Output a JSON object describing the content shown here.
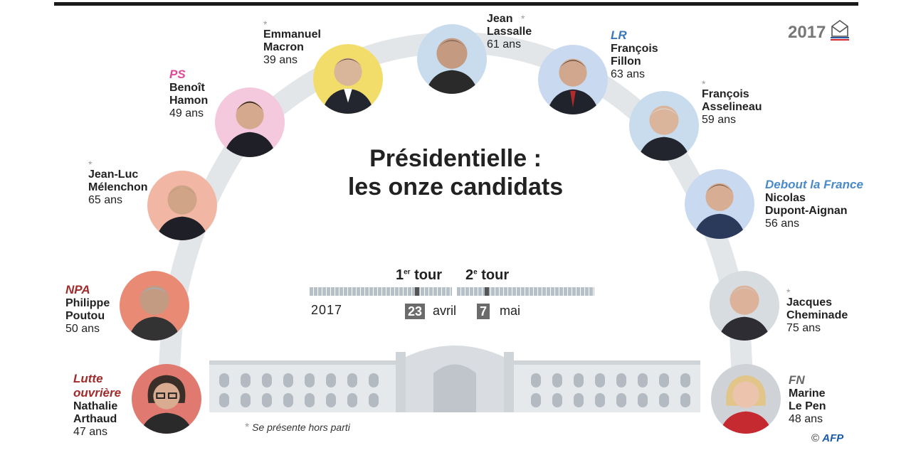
{
  "title_line1": "Présidentielle :",
  "title_line2": "les onze candidats",
  "star_symbol": "*",
  "candidates": [
    {
      "party": "",
      "party_color": "",
      "first": "Emmanuel",
      "last": "Macron",
      "age": "39 ans",
      "star": true,
      "ring": "#f3dd6a"
    },
    {
      "party": "",
      "party_color": "",
      "first": "Jean",
      "last": "Lassalle",
      "age": "61 ans",
      "star": true,
      "ring": "#c8dced"
    },
    {
      "party": "LR",
      "party_color": "#3b78b9",
      "first": "François",
      "last": "Fillon",
      "age": "63 ans",
      "star": false,
      "ring": "#c9d9f0"
    },
    {
      "party": "",
      "party_color": "",
      "first": "François",
      "last": "Asselineau",
      "age": "59 ans",
      "star": true,
      "ring": "#c8dced"
    },
    {
      "party": "Debout la France",
      "party_color": "#4a8ac9",
      "first": "Nicolas",
      "last": "Dupont-Aignan",
      "age": "56 ans",
      "star": false,
      "ring": "#c9d9f0"
    },
    {
      "party": "",
      "party_color": "",
      "first": "Jacques",
      "last": "Cheminade",
      "age": "75 ans",
      "star": true,
      "ring": "#d7dce0"
    },
    {
      "party": "FN",
      "party_color": "#666666",
      "first": "Marine",
      "last": "Le Pen",
      "age": "48 ans",
      "star": false,
      "ring": "#cfd3d7"
    },
    {
      "party": "PS",
      "party_color": "#e04a96",
      "first": "Benoît",
      "last": "Hamon",
      "age": "49 ans",
      "star": false,
      "ring": "#f4c9dd"
    },
    {
      "party": "",
      "party_color": "",
      "first": "Jean-Luc",
      "last": "Mélenchon",
      "age": "65 ans",
      "star": true,
      "ring": "#f1b7a4"
    },
    {
      "party": "NPA",
      "party_color": "#a12b2b",
      "first": "Philippe",
      "last": "Poutou",
      "age": "50 ans",
      "star": false,
      "ring": "#e98a74"
    },
    {
      "party": "Lutte ouvrière",
      "party_color": "#a12b2b",
      "first": "Nathalie",
      "last": "Arthaud",
      "age": "47 ans",
      "star": false,
      "ring": "#e07a70"
    }
  ],
  "timeline": {
    "tour1_num": "1",
    "tour1_sup": "er",
    "tour1_word": "tour",
    "tour2_num": "2",
    "tour2_sup": "e",
    "tour2_word": "tour",
    "year": "2017",
    "date1_day": "23",
    "date1_month": "avril",
    "date2_day": "7",
    "date2_month": "mai"
  },
  "footnote": "Se présente hors parti",
  "logo_year": "2017",
  "credit_symbol": "©",
  "credit_agency": "AFP",
  "colors": {
    "arc": "#e3e6e9",
    "ink": "#222222",
    "star": "#999999"
  }
}
